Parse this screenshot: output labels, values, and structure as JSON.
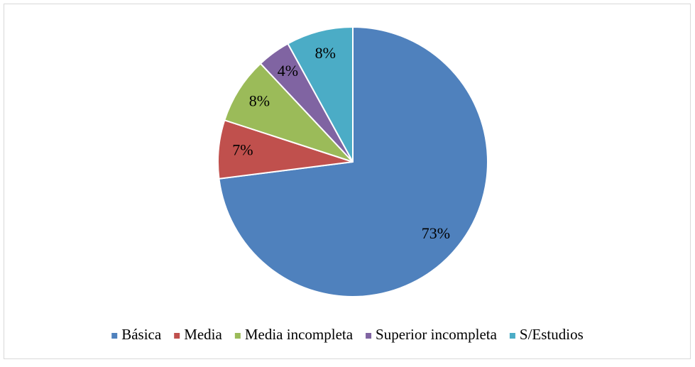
{
  "chart_data": {
    "type": "pie",
    "categories": [
      "Básica",
      "Media",
      "Media incompleta",
      "Superior incompleta",
      "S/Estudios"
    ],
    "values": [
      73,
      7,
      8,
      4,
      8
    ],
    "value_labels": [
      "73%",
      "7%",
      "8%",
      "4%",
      "8%"
    ],
    "colors": [
      "#4f81bd",
      "#c0504d",
      "#9bbb59",
      "#8064a2",
      "#4bacc6"
    ],
    "legend": "bottom"
  }
}
